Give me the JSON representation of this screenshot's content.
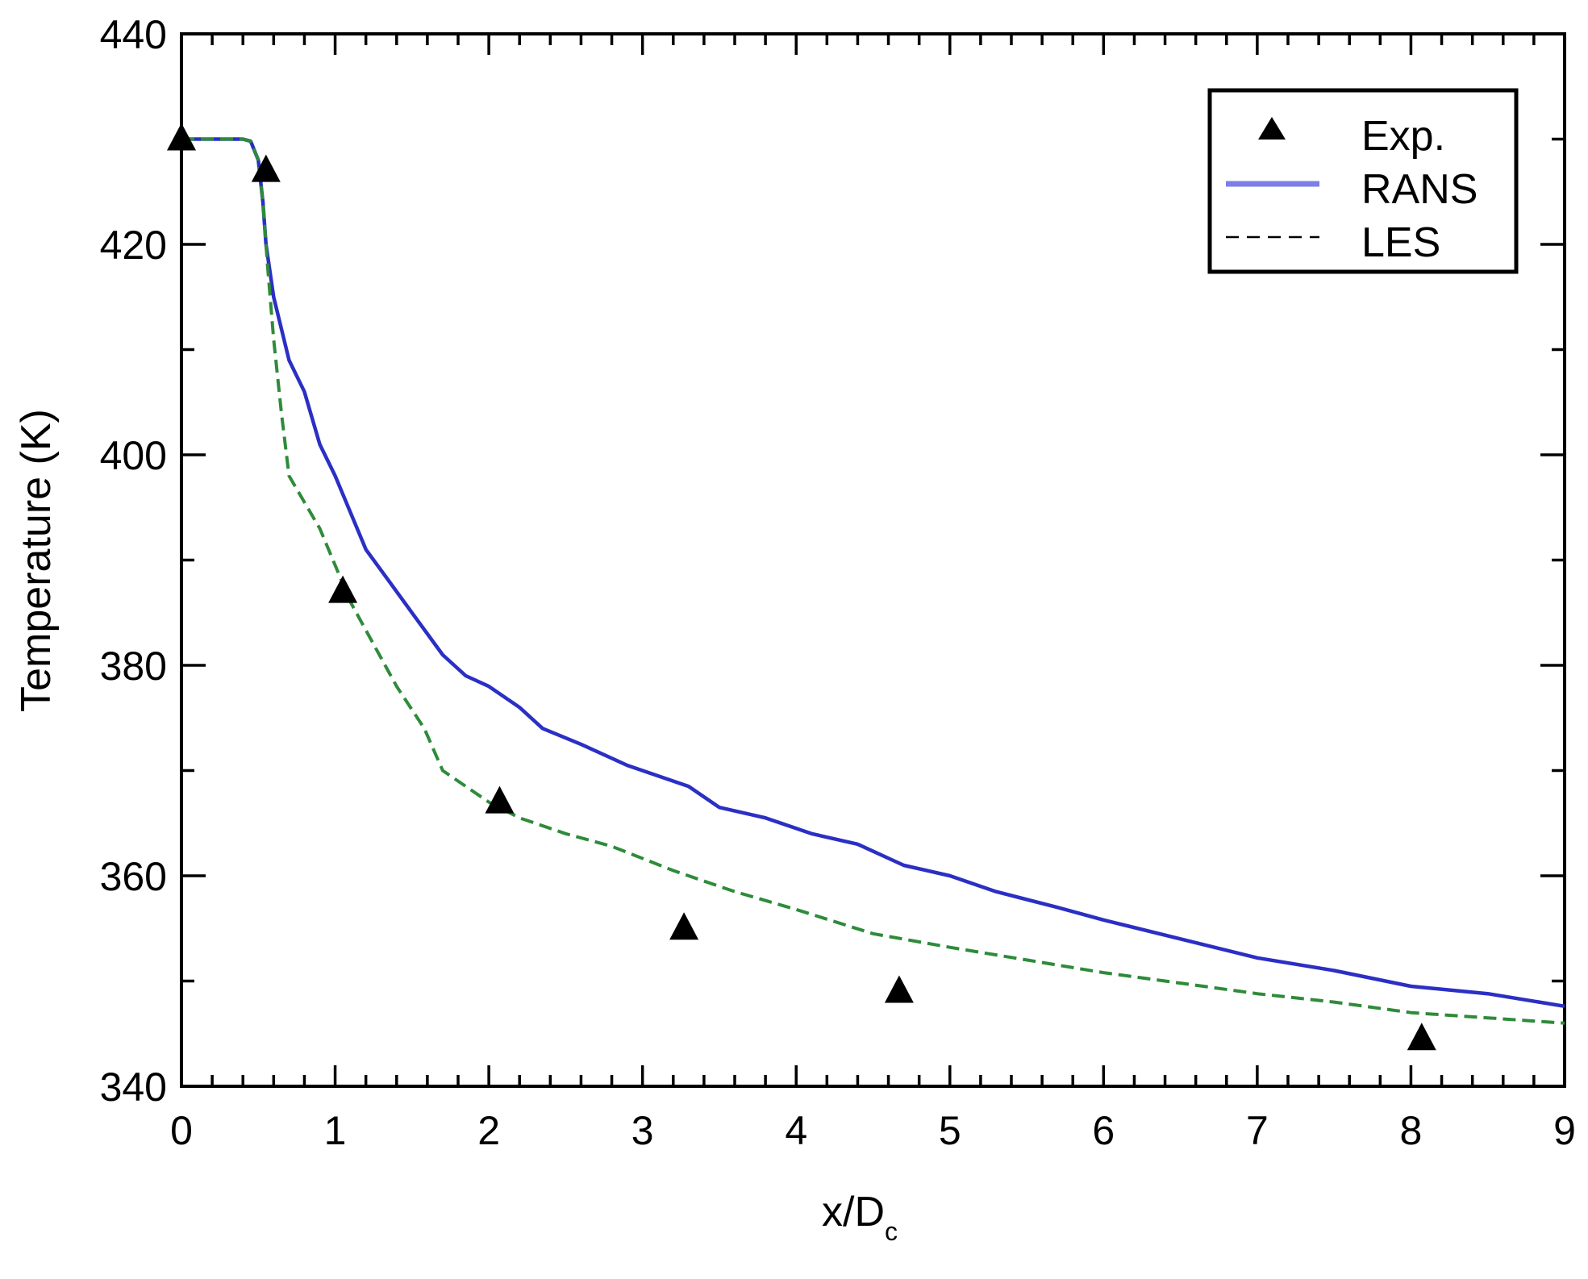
{
  "chart_data": {
    "type": "line",
    "xlabel": "x/D",
    "xlabel_subscript": "c",
    "ylabel": "Temperature (K)",
    "xlim": [
      0,
      9
    ],
    "ylim": [
      340,
      440
    ],
    "x_ticks": [
      "0",
      "1",
      "2",
      "3",
      "4",
      "5",
      "6",
      "7",
      "8",
      "9"
    ],
    "y_ticks": [
      "340",
      "360",
      "380",
      "400",
      "420",
      "440"
    ],
    "grid": false,
    "legend_position": "top-right",
    "legend": [
      "Exp.",
      "RANS",
      "LES"
    ],
    "colors": {
      "exp": "#000000",
      "rans": "#2b2fc4",
      "rans_legend": "#7b7fe6",
      "les": "#2e8b3a",
      "les_legend": "#000000"
    },
    "series": [
      {
        "name": "Exp.",
        "style": "markers-triangle",
        "points": [
          [
            0.0,
            430.0
          ],
          [
            0.55,
            427.0
          ],
          [
            1.05,
            387.0
          ],
          [
            2.07,
            367.0
          ],
          [
            3.27,
            355.0
          ],
          [
            4.67,
            349.0
          ],
          [
            8.07,
            344.5
          ]
        ]
      },
      {
        "name": "RANS",
        "style": "solid",
        "points": [
          [
            0.0,
            430
          ],
          [
            0.4,
            430
          ],
          [
            0.45,
            429.8
          ],
          [
            0.5,
            428
          ],
          [
            0.53,
            424
          ],
          [
            0.55,
            420
          ],
          [
            0.6,
            415
          ],
          [
            0.7,
            409
          ],
          [
            0.8,
            406
          ],
          [
            0.9,
            401
          ],
          [
            1.0,
            398
          ],
          [
            1.2,
            391
          ],
          [
            1.35,
            388
          ],
          [
            1.5,
            385
          ],
          [
            1.7,
            381
          ],
          [
            1.85,
            379
          ],
          [
            2.0,
            378
          ],
          [
            2.2,
            376
          ],
          [
            2.35,
            374
          ],
          [
            2.6,
            372.5
          ],
          [
            2.9,
            370.5
          ],
          [
            3.3,
            368.5
          ],
          [
            3.5,
            366.5
          ],
          [
            3.8,
            365.5
          ],
          [
            4.1,
            364
          ],
          [
            4.4,
            363
          ],
          [
            4.7,
            361
          ],
          [
            5.0,
            360
          ],
          [
            5.3,
            358.5
          ],
          [
            5.7,
            357
          ],
          [
            6.0,
            355.8
          ],
          [
            6.5,
            354
          ],
          [
            7.0,
            352.2
          ],
          [
            7.5,
            351
          ],
          [
            8.0,
            349.5
          ],
          [
            8.5,
            348.8
          ],
          [
            9.0,
            347.6
          ]
        ]
      },
      {
        "name": "LES",
        "style": "dashed",
        "points": [
          [
            0.0,
            430
          ],
          [
            0.4,
            430
          ],
          [
            0.45,
            429.8
          ],
          [
            0.5,
            428
          ],
          [
            0.53,
            424
          ],
          [
            0.56,
            418
          ],
          [
            0.6,
            411
          ],
          [
            0.65,
            404
          ],
          [
            0.7,
            398
          ],
          [
            0.8,
            395.5
          ],
          [
            0.9,
            393
          ],
          [
            1.0,
            389.5
          ],
          [
            1.1,
            386
          ],
          [
            1.25,
            382
          ],
          [
            1.4,
            378
          ],
          [
            1.58,
            374
          ],
          [
            1.7,
            370
          ],
          [
            1.85,
            368.5
          ],
          [
            2.0,
            367
          ],
          [
            2.2,
            365.5
          ],
          [
            2.5,
            364
          ],
          [
            2.8,
            362.8
          ],
          [
            3.2,
            360.5
          ],
          [
            3.6,
            358.5
          ],
          [
            4.0,
            356.8
          ],
          [
            4.5,
            354.5
          ],
          [
            5.0,
            353.2
          ],
          [
            5.5,
            352
          ],
          [
            6.0,
            350.8
          ],
          [
            6.5,
            349.8
          ],
          [
            7.0,
            348.8
          ],
          [
            7.5,
            348
          ],
          [
            8.0,
            347
          ],
          [
            8.5,
            346.5
          ],
          [
            9.0,
            346
          ]
        ]
      }
    ]
  }
}
